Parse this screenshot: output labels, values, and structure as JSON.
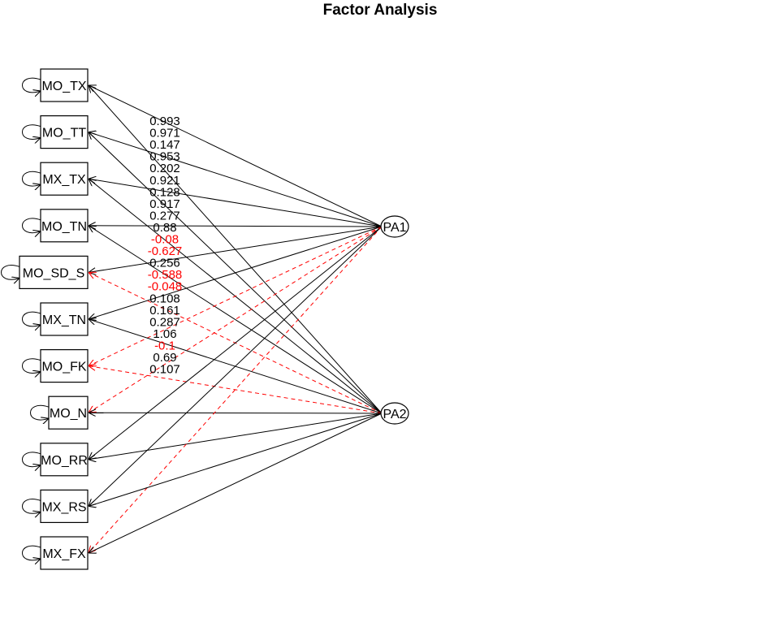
{
  "title": "Factor Analysis",
  "colors": {
    "positive": "#000000",
    "negative": "#ff0000"
  },
  "factors": [
    {
      "id": "PA1",
      "label": "PA1"
    },
    {
      "id": "PA2",
      "label": "PA2"
    }
  ],
  "variables": [
    {
      "id": "MO_TX",
      "label": "MO_TX"
    },
    {
      "id": "MO_TT",
      "label": "MO_TT"
    },
    {
      "id": "MX_TX",
      "label": "MX_TX"
    },
    {
      "id": "MO_TN",
      "label": "MO_TN"
    },
    {
      "id": "MO_SD_S",
      "label": "MO_SD_S"
    },
    {
      "id": "MX_TN",
      "label": "MX_TN"
    },
    {
      "id": "MO_FK",
      "label": "MO_FK"
    },
    {
      "id": "MO_N",
      "label": "MO_N"
    },
    {
      "id": "MO_RR",
      "label": "MO_RR"
    },
    {
      "id": "MX_RS",
      "label": "MX_RS"
    },
    {
      "id": "MX_FX",
      "label": "MX_FX"
    }
  ],
  "loadings": [
    {
      "factor": "PA1",
      "variable": "MO_TX",
      "label": "0.993",
      "value": 0.993
    },
    {
      "factor": "PA1",
      "variable": "MO_TT",
      "label": "0.971",
      "value": 0.971
    },
    {
      "factor": "PA2",
      "variable": "MO_TX",
      "label": "0.147",
      "value": 0.147
    },
    {
      "factor": "PA1",
      "variable": "MX_TX",
      "label": "0.953",
      "value": 0.953
    },
    {
      "factor": "PA2",
      "variable": "MO_TT",
      "label": "0.202",
      "value": 0.202
    },
    {
      "factor": "PA1",
      "variable": "MO_TN",
      "label": "0.921",
      "value": 0.921
    },
    {
      "factor": "PA2",
      "variable": "MX_TX",
      "label": "0.128",
      "value": 0.128
    },
    {
      "factor": "PA1",
      "variable": "MO_SD_S",
      "label": "0.917",
      "value": 0.917
    },
    {
      "factor": "PA2",
      "variable": "MO_TN",
      "label": "0.277",
      "value": 0.277
    },
    {
      "factor": "PA1",
      "variable": "MX_TN",
      "label": "0.88",
      "value": 0.88
    },
    {
      "factor": "PA2",
      "variable": "MO_SD_S",
      "label": "-0.08",
      "value": -0.08
    },
    {
      "factor": "PA1",
      "variable": "MO_FK",
      "label": "-0.627",
      "value": -0.627
    },
    {
      "factor": "PA2",
      "variable": "MX_TN",
      "label": "0.256",
      "value": 0.256
    },
    {
      "factor": "PA1",
      "variable": "MO_N",
      "label": "-0.588",
      "value": -0.588
    },
    {
      "factor": "PA2",
      "variable": "MO_FK",
      "label": "-0.048",
      "value": -0.048
    },
    {
      "factor": "PA2",
      "variable": "MO_N",
      "label": "0.108",
      "value": 0.108
    },
    {
      "factor": "PA1",
      "variable": "MO_RR",
      "label": "0.161",
      "value": 0.161
    },
    {
      "factor": "PA1",
      "variable": "MX_RS",
      "label": "0.287",
      "value": 0.287
    },
    {
      "factor": "PA2",
      "variable": "MO_RR",
      "label": "1.06",
      "value": 1.06
    },
    {
      "factor": "PA1",
      "variable": "MX_FX",
      "label": "-0.1",
      "value": -0.1
    },
    {
      "factor": "PA2",
      "variable": "MX_RS",
      "label": "0.69",
      "value": 0.69
    },
    {
      "factor": "PA2",
      "variable": "MX_FX",
      "label": "0.107",
      "value": 0.107
    }
  ]
}
